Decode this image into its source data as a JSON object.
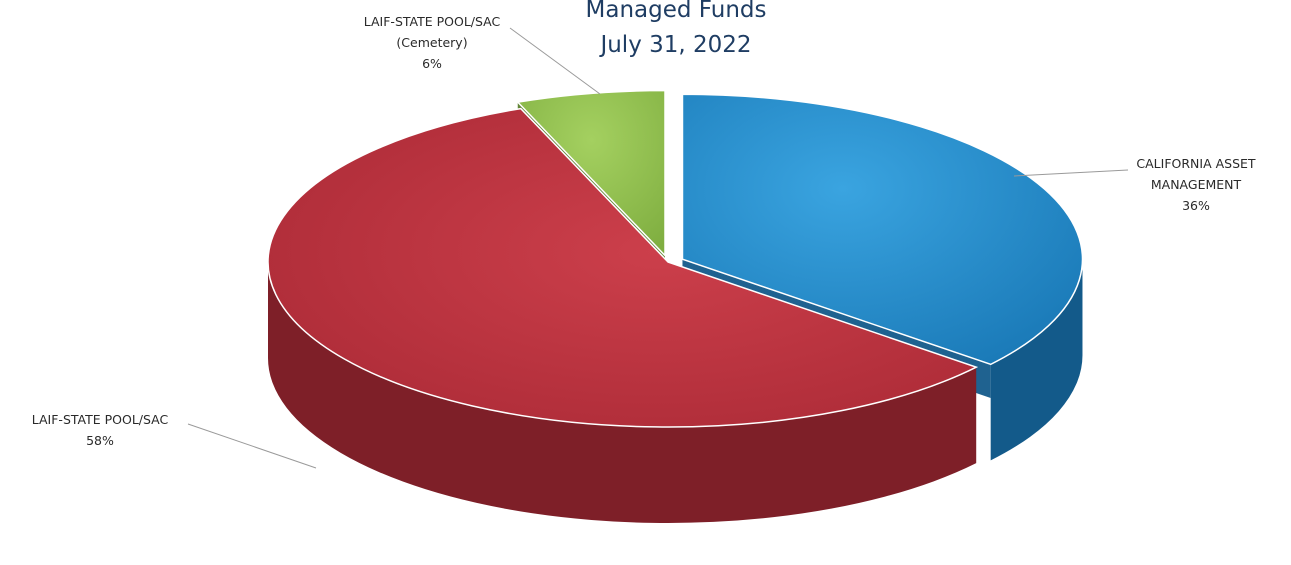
{
  "chart_data": {
    "type": "pie",
    "title": [
      "Managed Funds",
      "July 31, 2022"
    ],
    "slices": [
      {
        "label": [
          "CALIFORNIA ASSET",
          "MANAGEMENT"
        ],
        "percent_label": "36%",
        "value": 36,
        "color": "#1e86c8",
        "side_color": "#135a8a"
      },
      {
        "label": [
          "LAIF-STATE POOL/SAC"
        ],
        "percent_label": "58%",
        "value": 58,
        "color": "#b8313c",
        "side_color": "#7e1f28"
      },
      {
        "label": [
          "LAIF-STATE POOL/SAC",
          "(Cemetery)"
        ],
        "percent_label": "6%",
        "value": 6,
        "color": "#8fbf4e",
        "side_color": "#5a7f2c"
      }
    ],
    "style": "3d-exploded",
    "legend": "none"
  }
}
